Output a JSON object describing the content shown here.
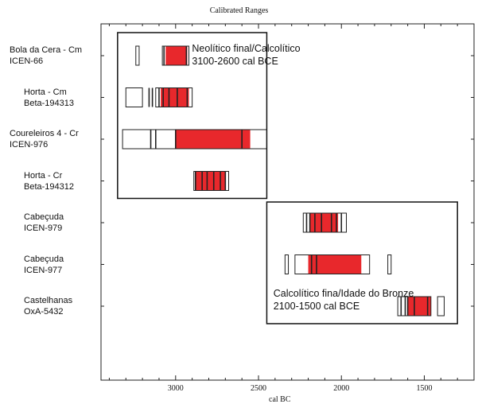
{
  "chart_data": {
    "type": "bar",
    "title": "Calibrated Ranges",
    "xlabel": "cal BC",
    "xlim": [
      3450,
      1200
    ],
    "xticks": [
      3000,
      2500,
      2000,
      1500
    ],
    "categories": [
      {
        "name": "Bola da Cera - Cm",
        "lab": "ICEN-66"
      },
      {
        "name": "Horta - Cm",
        "lab": "Beta-194313"
      },
      {
        "name": "Coureleiros 4 - Cr",
        "lab": "ICEN-976"
      },
      {
        "name": "Horta - Cr",
        "lab": "Beta-194312"
      },
      {
        "name": "Cabeçuda",
        "lab": "ICEN-979"
      },
      {
        "name": "Cabeçuda",
        "lab": "ICEN-977"
      },
      {
        "name": "Castelhanas",
        "lab": "OxA-5432"
      }
    ],
    "ranges": [
      {
        "open": [
          [
            3240,
            3220
          ],
          [
            3080,
            2920
          ]
        ],
        "red": [
          [
            3060,
            2930
          ]
        ],
        "lines": [
          3070,
          2935
        ]
      },
      {
        "open": [
          [
            3300,
            3200
          ],
          [
            3120,
            2900
          ]
        ],
        "red": [
          [
            3090,
            2920
          ]
        ],
        "lines": [
          3160,
          3140,
          3100,
          3075,
          3040,
          2990,
          2930
        ]
      },
      {
        "open": [
          [
            3320,
            2450
          ]
        ],
        "red": [
          [
            3000,
            2550
          ]
        ],
        "lines": [
          3150,
          3120,
          3000,
          2600
        ]
      },
      {
        "open": [
          [
            2890,
            2680
          ]
        ],
        "red": [
          [
            2880,
            2700
          ]
        ],
        "lines": [
          2880,
          2840,
          2810,
          2770,
          2730,
          2700
        ]
      },
      {
        "open": [
          [
            2230,
            1970
          ]
        ],
        "red": [
          [
            2190,
            2020
          ]
        ],
        "lines": [
          2210,
          2190,
          2160,
          2120,
          2060,
          2030,
          2000
        ]
      },
      {
        "open": [
          [
            2320,
            2340
          ],
          [
            2280,
            1830
          ],
          [
            1720,
            1700
          ]
        ],
        "red": [
          [
            2200,
            1880
          ]
        ],
        "lines": [
          2180,
          2150
        ]
      },
      {
        "open": [
          [
            1660,
            1460
          ],
          [
            1420,
            1380
          ]
        ],
        "red": [
          [
            1600,
            1460
          ]
        ],
        "lines": [
          1640,
          1615,
          1600,
          1560,
          1480
        ]
      }
    ],
    "annotations": [
      {
        "line1": "Neolítico final/Calcolítico",
        "line2": "3100-2600 cal BCE",
        "x_range": [
          3350,
          2450
        ],
        "row_range": [
          0,
          3
        ]
      },
      {
        "line1": "Calcolítico fina/Idade do Bronze",
        "line2": "2100-1500 cal BCE",
        "x_range": [
          2450,
          1300
        ],
        "row_range": [
          4,
          6
        ]
      }
    ],
    "colors": {
      "fill": "#e8282c",
      "outline": "#222222",
      "axis": "#222222"
    },
    "grid": false,
    "legend": "none"
  }
}
